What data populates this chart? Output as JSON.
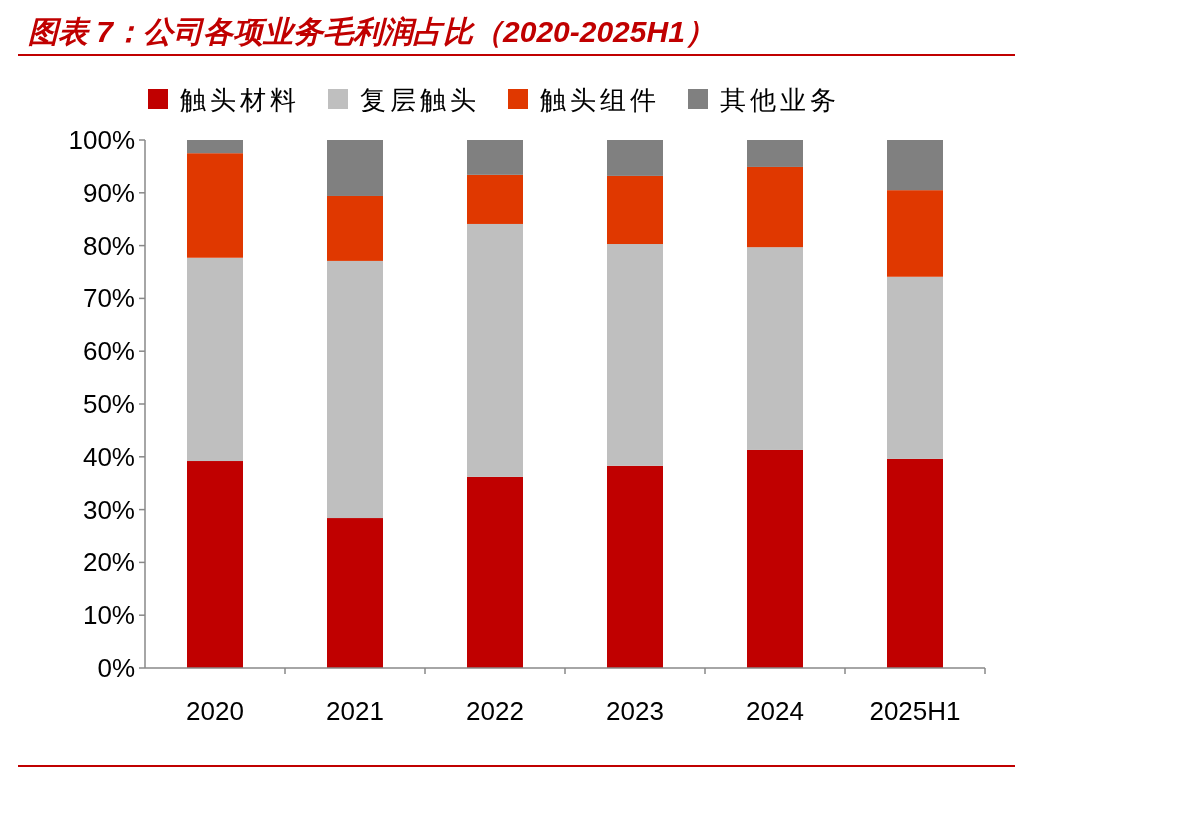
{
  "chart_data": {
    "type": "bar",
    "stacked": true,
    "title": "图表 7：公司各项业务毛利润占比（2020-2025H1）",
    "categories": [
      "2020",
      "2021",
      "2022",
      "2023",
      "2024",
      "2025H1"
    ],
    "series": [
      {
        "name": "触头材料",
        "color": "#c00000",
        "values": [
          39.2,
          28.4,
          36.2,
          38.3,
          41.3,
          39.6
        ]
      },
      {
        "name": "复层触头",
        "color": "#bfbfbf",
        "values": [
          38.5,
          48.7,
          47.9,
          42.0,
          38.4,
          34.5
        ]
      },
      {
        "name": "触头组件",
        "color": "#e03800",
        "values": [
          19.8,
          12.3,
          9.3,
          12.9,
          15.2,
          16.4
        ]
      },
      {
        "name": "其他业务",
        "color": "#808080",
        "values": [
          2.5,
          10.6,
          6.6,
          6.8,
          5.1,
          9.5
        ]
      }
    ],
    "ylim": [
      0,
      100
    ],
    "yticks": [
      {
        "value": 0,
        "label": "0%"
      },
      {
        "value": 10,
        "label": "10%"
      },
      {
        "value": 20,
        "label": "20%"
      },
      {
        "value": 30,
        "label": "30%"
      },
      {
        "value": 40,
        "label": "40%"
      },
      {
        "value": 50,
        "label": "50%"
      },
      {
        "value": 60,
        "label": "60%"
      },
      {
        "value": 70,
        "label": "70%"
      },
      {
        "value": 80,
        "label": "80%"
      },
      {
        "value": 90,
        "label": "90%"
      },
      {
        "value": 100,
        "label": "100%"
      }
    ],
    "grid": false,
    "legend": "top"
  }
}
